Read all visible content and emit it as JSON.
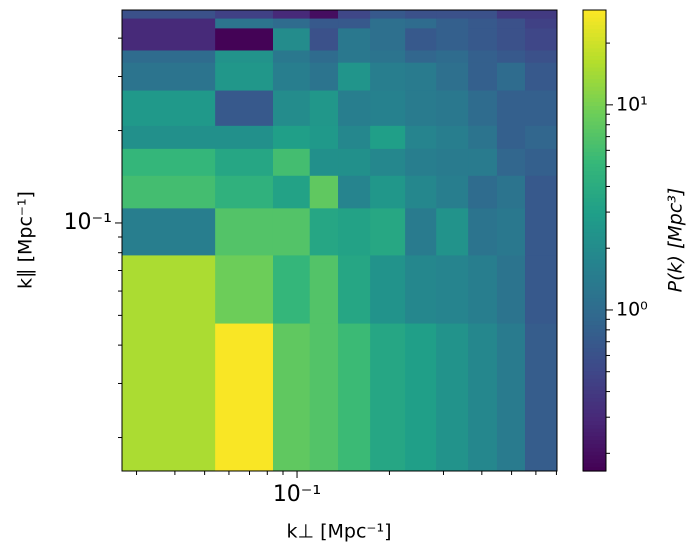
{
  "chart_data": {
    "type": "heatmap",
    "xlabel": "k⊥ [Mpc⁻¹]",
    "ylabel": "k∥ [Mpc⁻¹]",
    "x_edges": [
      0.0269,
      0.0541,
      0.0835,
      0.11,
      0.136,
      0.173,
      0.225,
      0.284,
      0.361,
      0.448,
      0.553,
      0.703
    ],
    "y_edges": [
      0.01556,
      0.0472,
      0.0787,
      0.112,
      0.143,
      0.175,
      0.208,
      0.271,
      0.334,
      0.366,
      0.432,
      0.465,
      0.494
    ],
    "z": [
      [
        15,
        28,
        8,
        7,
        5.5,
        3.5,
        3,
        2.3,
        1.8,
        1.4,
        0.75
      ],
      [
        15,
        9,
        5,
        7,
        3.5,
        2.3,
        1.8,
        1.7,
        1.5,
        1.2,
        0.7
      ],
      [
        1.5,
        7,
        7,
        3.5,
        3.2,
        3.6,
        1.4,
        2.3,
        1.2,
        1.3,
        0.7
      ],
      [
        6,
        4.5,
        3.2,
        8,
        1.7,
        2.5,
        1.8,
        1.5,
        1.0,
        1.2,
        0.7
      ],
      [
        5,
        3.5,
        6,
        2.2,
        2.2,
        1.8,
        1.5,
        1.4,
        1.4,
        0.9,
        0.8
      ],
      [
        2.2,
        2.2,
        3,
        2.6,
        1.8,
        3,
        1.7,
        1.5,
        1.2,
        0.8,
        0.9
      ],
      [
        2.6,
        0.7,
        2.0,
        2.5,
        1.5,
        1.6,
        1.4,
        1.3,
        1.0,
        0.8,
        0.8
      ],
      [
        1.2,
        2.5,
        1.5,
        1.2,
        2.4,
        1.5,
        1.4,
        1.1,
        0.8,
        1.0,
        0.7
      ],
      [
        1.0,
        2.3,
        1.3,
        1.0,
        1.3,
        1.2,
        0.9,
        1.0,
        0.8,
        0.7,
        0.6
      ],
      [
        0.3,
        0.17,
        2.0,
        0.6,
        1.3,
        1.1,
        0.7,
        0.8,
        0.7,
        0.6,
        0.5
      ],
      [
        0.3,
        1.2,
        1.0,
        0.7,
        0.7,
        1.1,
        1.0,
        0.8,
        0.7,
        0.6,
        0.45
      ],
      [
        0.6,
        0.45,
        0.3,
        0.2,
        0.5,
        0.7,
        0.6,
        0.6,
        0.6,
        0.4,
        0.4
      ]
    ],
    "xscale": "log",
    "yscale": "log",
    "xlim": [
      0.0269,
      0.703
    ],
    "ylim": [
      0.01556,
      0.494
    ],
    "xticks": [
      {
        "value": 0.1,
        "label": "10⁻¹"
      }
    ],
    "yticks": [
      {
        "value": 0.1,
        "label": "10⁻¹"
      }
    ],
    "xminor_ticks": [
      0.03,
      0.04,
      0.05,
      0.06,
      0.07,
      0.08,
      0.09,
      0.2,
      0.3,
      0.4,
      0.5,
      0.6,
      0.7
    ],
    "yminor_ticks": [
      0.02,
      0.03,
      0.04,
      0.05,
      0.06,
      0.07,
      0.08,
      0.09,
      0.2,
      0.3,
      0.4
    ],
    "colormap": "viridis",
    "colorbar": {
      "label": "P(k) [Mpc³]",
      "scale": "log",
      "lim": [
        0.164,
        29
      ],
      "ticks": [
        {
          "value": 1,
          "label": "10⁰"
        },
        {
          "value": 10,
          "label": "10¹"
        }
      ],
      "minor_ticks": [
        0.2,
        0.3,
        0.4,
        0.5,
        0.6,
        0.7,
        0.8,
        0.9,
        2,
        3,
        4,
        5,
        6,
        7,
        8,
        9,
        20
      ]
    }
  }
}
